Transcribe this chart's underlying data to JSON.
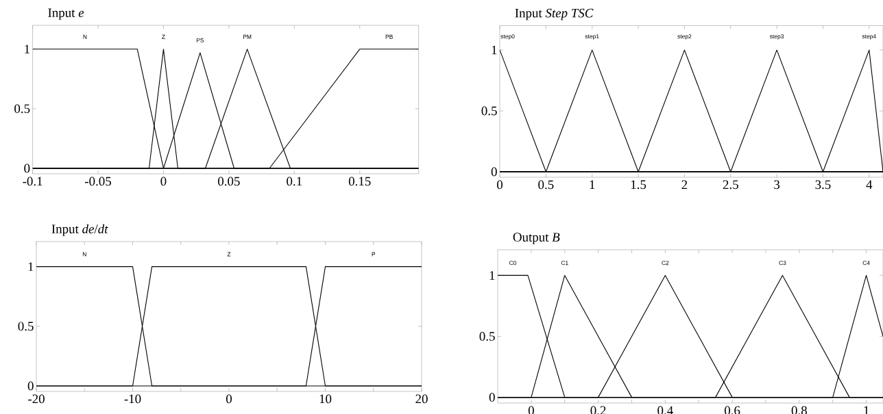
{
  "chart_data": [
    {
      "type": "line",
      "title": "Input *e*",
      "xlim": [
        -0.1,
        0.195
      ],
      "ylim": [
        -0.046,
        1.2
      ],
      "xticks": [
        -0.1,
        -0.05,
        0,
        0.05,
        0.1,
        0.15
      ],
      "yticks": [
        0,
        0.5,
        1
      ],
      "series": [
        {
          "name": "N",
          "color": "#000000",
          "x": [
            -0.1,
            -0.02,
            0,
            0.195
          ],
          "values": [
            1,
            1,
            0,
            0
          ]
        },
        {
          "name": "Z",
          "color": "#000000",
          "x": [
            -0.1,
            -0.011,
            0,
            0.011,
            0.195
          ],
          "values": [
            0,
            0,
            1,
            0,
            0
          ]
        },
        {
          "name": "PS",
          "color": "#000000",
          "x": [
            -0.1,
            0,
            0.028,
            0.054,
            0.195
          ],
          "values": [
            0,
            0,
            0.97,
            0,
            0
          ]
        },
        {
          "name": "PM",
          "color": "#000000",
          "x": [
            -0.1,
            0.032,
            0.064,
            0.097,
            0.195
          ],
          "values": [
            0,
            0,
            1,
            0,
            0
          ]
        },
        {
          "name": "PB",
          "color": "#000000",
          "x": [
            -0.1,
            0.081,
            0.15,
            0.195
          ],
          "values": [
            0,
            0,
            1,
            1
          ]
        }
      ]
    },
    {
      "type": "line",
      "title": "Input *Step TSC*",
      "xlim": [
        0,
        4.15
      ],
      "ylim": [
        -0.045,
        1.2
      ],
      "xticks": [
        0,
        0.5,
        1,
        1.5,
        2,
        2.5,
        3,
        3.5,
        4
      ],
      "yticks": [
        0,
        0.5,
        1
      ],
      "series": [
        {
          "name": "step0",
          "color": "#000000",
          "x": [
            0,
            0.5,
            4.15
          ],
          "values": [
            1,
            0,
            0
          ]
        },
        {
          "name": "step1",
          "color": "#000000",
          "x": [
            0,
            0.5,
            1,
            1.5,
            4.15
          ],
          "values": [
            0,
            0,
            1,
            0,
            0
          ]
        },
        {
          "name": "step2",
          "color": "#000000",
          "x": [
            0,
            1.5,
            2,
            2.5,
            4.15
          ],
          "values": [
            0,
            0,
            1,
            0,
            0
          ]
        },
        {
          "name": "step3",
          "color": "#000000",
          "x": [
            0,
            2.5,
            3,
            3.5,
            4.15
          ],
          "values": [
            0,
            0,
            1,
            0,
            0
          ]
        },
        {
          "name": "step4",
          "color": "#000000",
          "x": [
            0,
            3.5,
            4,
            4.15
          ],
          "values": [
            0,
            0,
            1,
            0
          ]
        }
      ]
    },
    {
      "type": "line",
      "title": "Input *de*/*dt*",
      "xlim": [
        -20,
        20
      ],
      "ylim": [
        -0.046,
        1.21
      ],
      "xticks": [
        -20,
        {
          "value": -15,
          "label": null
        },
        -10,
        {
          "value": -5,
          "label": null
        },
        0,
        {
          "value": 5,
          "label": null
        },
        10,
        {
          "value": 15,
          "label": null
        },
        20
      ],
      "yticks": [
        0,
        0.5,
        1
      ],
      "series": [
        {
          "name": "N",
          "color": "#000000",
          "x": [
            -20,
            -10,
            -8,
            20
          ],
          "values": [
            1,
            1,
            0,
            0
          ]
        },
        {
          "name": "Z",
          "color": "#000000",
          "x": [
            -20,
            -10,
            -8,
            8,
            10,
            20
          ],
          "values": [
            0,
            0,
            1,
            1,
            0,
            0
          ]
        },
        {
          "name": "P",
          "color": "#000000",
          "x": [
            -20,
            8,
            10,
            20
          ],
          "values": [
            0,
            0,
            1,
            1
          ]
        }
      ]
    },
    {
      "type": "line",
      "title": "Output *B*",
      "xlim": [
        -0.1,
        1.05
      ],
      "ylim": [
        -0.047,
        1.21
      ],
      "xticks": [
        0,
        {
          "value": 0.1,
          "label": null
        },
        0.2,
        {
          "value": 0.3,
          "label": null
        },
        0.4,
        {
          "value": 0.5,
          "label": null
        },
        0.6,
        {
          "value": 0.7,
          "label": null
        },
        0.8,
        {
          "value": 0.9,
          "label": null
        },
        1
      ],
      "yticks": [
        0,
        0.5,
        1
      ],
      "series": [
        {
          "name": "C0",
          "color": "#000000",
          "x": [
            -0.1,
            -0.01,
            0.1,
            1.05
          ],
          "values": [
            1,
            1,
            0,
            0
          ]
        },
        {
          "name": "C1",
          "color": "#000000",
          "x": [
            -0.1,
            0,
            0.1,
            0.3,
            1.05
          ],
          "values": [
            0,
            0,
            1,
            0,
            0
          ]
        },
        {
          "name": "C2",
          "color": "#000000",
          "x": [
            -0.1,
            0.2,
            0.4,
            0.6,
            1.05
          ],
          "values": [
            0,
            0,
            1,
            0,
            0
          ]
        },
        {
          "name": "C3",
          "color": "#000000",
          "x": [
            -0.1,
            0.55,
            0.75,
            0.95,
            1.05
          ],
          "values": [
            0,
            0,
            1,
            0,
            0
          ]
        },
        {
          "name": "C4",
          "color": "#000000",
          "x": [
            -0.1,
            0.9,
            1,
            1.05
          ],
          "values": [
            0,
            0,
            1,
            0.5
          ]
        }
      ]
    }
  ]
}
